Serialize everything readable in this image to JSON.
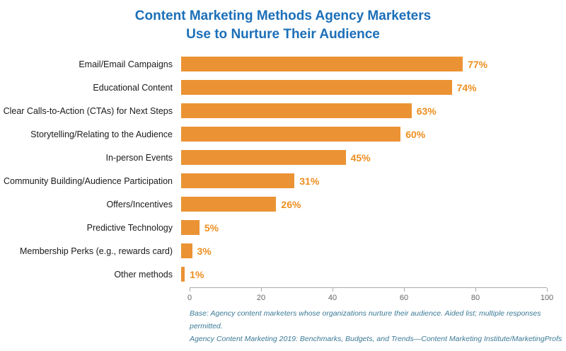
{
  "colors": {
    "bar": "#EB9334",
    "bar-label": "#EE8F21",
    "title": "#1C6FB8",
    "footer": "#3C7A96",
    "axis": "#AAAAAA"
  },
  "chart_data": {
    "type": "bar",
    "orientation": "horizontal",
    "title": "Content Marketing Methods Agency Marketers\nUse to Nurture Their Audience",
    "categories": [
      "Email/Email Campaigns",
      "Educational Content",
      "Clear Calls-to-Action (CTAs) for Next Steps",
      "Storytelling/Relating to the Audience",
      "In-person Events",
      "Community Building/Audience Participation",
      "Offers/Incentives",
      "Predictive Technology",
      "Membership Perks (e.g., rewards card)",
      "Other methods"
    ],
    "values": [
      77,
      74,
      63,
      60,
      45,
      31,
      26,
      5,
      3,
      1
    ],
    "value_labels": [
      "77%",
      "74%",
      "63%",
      "60%",
      "45%",
      "31%",
      "26%",
      "5%",
      "3%",
      "1%"
    ],
    "xlabel": "",
    "ylabel": "",
    "xlim": [
      0,
      100
    ],
    "x_ticks": [
      0,
      20,
      40,
      60,
      80,
      100
    ],
    "grid": false,
    "legend": false
  },
  "footer": {
    "lines": [
      "Base: Agency content marketers whose organizations nurture their audience. Aided list; multiple responses permitted.",
      "Agency Content Marketing 2019: Benchmarks, Budgets, and Trends—Content Marketing Institute/MarketingProfs"
    ]
  }
}
